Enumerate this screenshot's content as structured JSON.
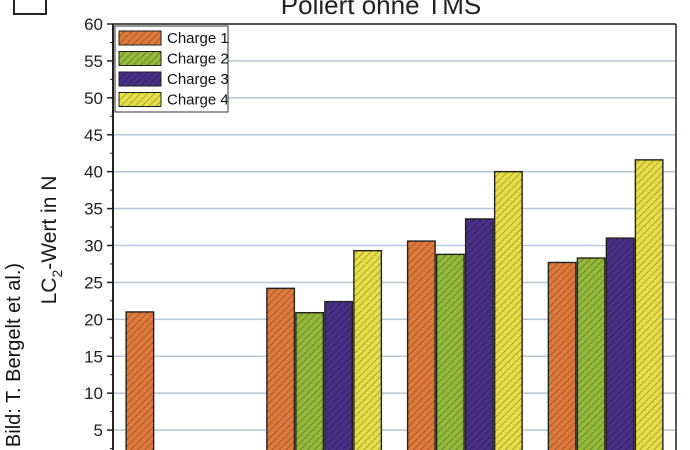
{
  "chart_data": {
    "type": "bar",
    "title": "Poliert ohne TMS",
    "ylabel_main": "LC",
    "ylabel_sub": "2",
    "ylabel_rest": "-Wert in N",
    "side_credit": "Bild: T. Bergelt et al.)",
    "ylim": [
      0,
      60
    ],
    "yticks": [
      5,
      10,
      15,
      20,
      25,
      30,
      35,
      40,
      45,
      50,
      55,
      60
    ],
    "grid": true,
    "legend_position": "top-left",
    "categories": [
      "",
      "",
      "",
      ""
    ],
    "series": [
      {
        "name": "Charge 1",
        "color": "#e07a3c",
        "values": [
          21,
          24.2,
          30.6,
          27.7
        ]
      },
      {
        "name": "Charge 2",
        "color": "#93b83a",
        "values": [
          null,
          20.9,
          28.8,
          28.3
        ]
      },
      {
        "name": "Charge 3",
        "color": "#4a2f86",
        "values": [
          null,
          22.4,
          33.6,
          31
        ]
      },
      {
        "name": "Charge 4",
        "color": "#e6df47",
        "values": [
          null,
          29.3,
          40,
          41.6
        ]
      }
    ]
  }
}
